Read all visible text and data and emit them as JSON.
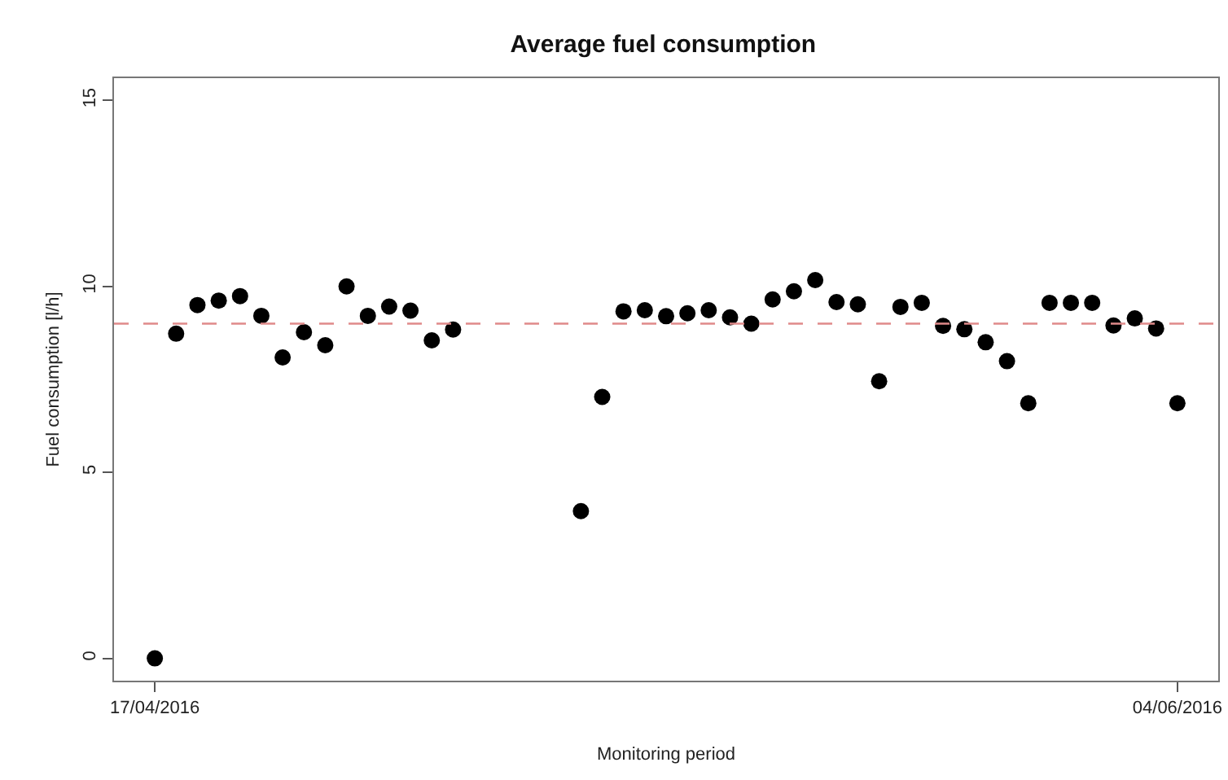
{
  "chart_data": {
    "type": "scatter",
    "title": "Average fuel consumption",
    "xlabel": "Monitoring period",
    "ylabel": "Fuel consumption [l/h]",
    "x": [
      "2016-04-17",
      "2016-04-18",
      "2016-04-19",
      "2016-04-20",
      "2016-04-21",
      "2016-04-22",
      "2016-04-23",
      "2016-04-24",
      "2016-04-25",
      "2016-04-26",
      "2016-04-27",
      "2016-04-28",
      "2016-04-29",
      "2016-04-30",
      "2016-05-01",
      "2016-05-07",
      "2016-05-08",
      "2016-05-09",
      "2016-05-10",
      "2016-05-11",
      "2016-05-12",
      "2016-05-13",
      "2016-05-14",
      "2016-05-15",
      "2016-05-16",
      "2016-05-17",
      "2016-05-18",
      "2016-05-19",
      "2016-05-20",
      "2016-05-21",
      "2016-05-22",
      "2016-05-23",
      "2016-05-24",
      "2016-05-25",
      "2016-05-26",
      "2016-05-27",
      "2016-05-28",
      "2016-05-29",
      "2016-05-30",
      "2016-05-31",
      "2016-06-01",
      "2016-06-02",
      "2016-06-03",
      "2016-06-04"
    ],
    "series": [
      {
        "color": "#000000",
        "values": [
          0,
          8.73,
          9.5,
          9.62,
          9.74,
          9.21,
          8.09,
          8.77,
          8.42,
          10.0,
          9.21,
          9.46,
          9.35,
          8.55,
          8.84,
          3.96,
          7.03,
          9.33,
          9.36,
          9.2,
          9.28,
          9.36,
          9.17,
          9.0,
          9.65,
          9.87,
          10.17,
          9.58,
          9.52,
          7.45,
          9.45,
          9.56,
          8.94,
          8.85,
          8.5,
          7.99,
          6.86,
          9.56,
          9.56,
          9.56,
          8.95,
          9.14,
          8.87,
          6.86
        ]
      }
    ],
    "marker": "circle",
    "xlim": [
      "2016-04-15T02:00",
      "2016-06-05T22:00"
    ],
    "xticks": [
      {
        "value": "2016-04-17",
        "label": "17/04/2016"
      },
      {
        "value": "2016-06-04",
        "label": "04/06/2016"
      }
    ],
    "ylim": [
      -0.6,
      15.6
    ],
    "yticks": [
      0,
      5,
      10,
      15
    ],
    "ref_lines": [
      {
        "axis": "y",
        "value": 9,
        "color": "#e08a8a",
        "line_style": "dashed"
      }
    ]
  }
}
